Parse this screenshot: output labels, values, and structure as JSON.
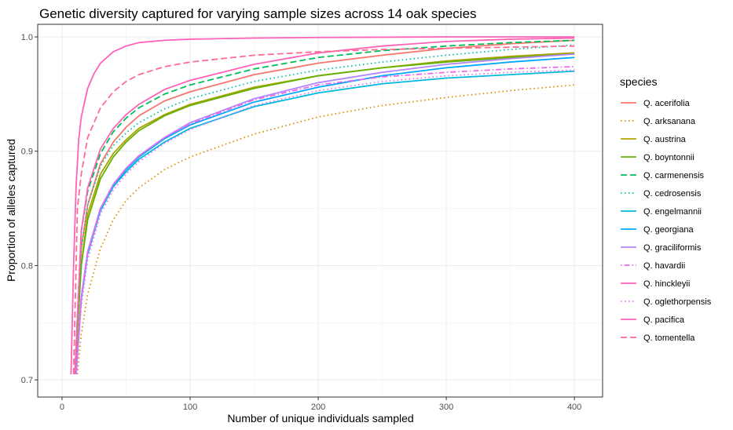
{
  "chart_data": {
    "type": "line",
    "title": "Genetic diversity captured for varying sample sizes across 14 oak species",
    "xlabel": "Number of unique individuals sampled",
    "ylabel": "Proportion of alleles captured",
    "xlim": [
      -19,
      422
    ],
    "ylim": [
      0.685,
      1.011
    ],
    "x_ticks": [
      0,
      100,
      200,
      300,
      400
    ],
    "y_ticks": [
      0.7,
      0.8,
      0.9,
      1.0
    ],
    "x_tick_labels": [
      "0",
      "100",
      "200",
      "300",
      "400"
    ],
    "y_tick_labels": [
      "0.7",
      "0.8",
      "0.9",
      "1.0"
    ],
    "grid": true,
    "legend_title": "species",
    "legend_position": "right",
    "series": [
      {
        "name": "Q. acerifolia",
        "color": "#F8766D",
        "dash": "solid",
        "x": [
          10,
          15,
          20,
          30,
          40,
          50,
          60,
          80,
          100,
          150,
          200,
          250,
          300,
          350,
          400
        ],
        "y": [
          0.705,
          0.815,
          0.853,
          0.889,
          0.908,
          0.921,
          0.931,
          0.944,
          0.952,
          0.967,
          0.977,
          0.984,
          0.99,
          0.994,
          0.997
        ]
      },
      {
        "name": "Q. arksanana",
        "color": "#DB8E00",
        "dash": "dot",
        "x": [
          12,
          15,
          20,
          30,
          40,
          50,
          60,
          80,
          100,
          150,
          200,
          250,
          300,
          350,
          400
        ],
        "y": [
          0.705,
          0.74,
          0.775,
          0.815,
          0.84,
          0.857,
          0.868,
          0.884,
          0.895,
          0.915,
          0.93,
          0.94,
          0.947,
          0.953,
          0.958
        ]
      },
      {
        "name": "Q. austrina",
        "color": "#AEA200",
        "dash": "solid",
        "x": [
          10,
          15,
          20,
          30,
          40,
          50,
          60,
          80,
          100,
          150,
          200,
          250,
          300,
          350,
          400
        ],
        "y": [
          0.705,
          0.8,
          0.845,
          0.88,
          0.898,
          0.91,
          0.92,
          0.932,
          0.941,
          0.956,
          0.966,
          0.973,
          0.979,
          0.983,
          0.986
        ]
      },
      {
        "name": "Q. boyntonnii",
        "color": "#64B200",
        "dash": "solid",
        "x": [
          10,
          15,
          20,
          30,
          40,
          50,
          60,
          80,
          100,
          150,
          200,
          250,
          300,
          350,
          400
        ],
        "y": [
          0.705,
          0.8,
          0.84,
          0.876,
          0.895,
          0.908,
          0.918,
          0.931,
          0.94,
          0.955,
          0.966,
          0.973,
          0.978,
          0.982,
          0.985
        ]
      },
      {
        "name": "Q. carmenensis",
        "color": "#00BD5C",
        "dash": "dashed",
        "x": [
          10,
          15,
          20,
          30,
          40,
          50,
          60,
          80,
          100,
          150,
          200,
          250,
          300,
          350,
          400
        ],
        "y": [
          0.705,
          0.83,
          0.865,
          0.898,
          0.917,
          0.929,
          0.938,
          0.95,
          0.958,
          0.972,
          0.982,
          0.988,
          0.992,
          0.995,
          0.997
        ]
      },
      {
        "name": "Q. cedrosensis",
        "color": "#00C1A7",
        "dash": "dot",
        "x": [
          10,
          15,
          20,
          30,
          40,
          50,
          60,
          80,
          100,
          150,
          200,
          250,
          300,
          350,
          400
        ],
        "y": [
          0.705,
          0.815,
          0.853,
          0.887,
          0.905,
          0.916,
          0.925,
          0.937,
          0.946,
          0.961,
          0.971,
          0.978,
          0.984,
          0.989,
          0.993
        ]
      },
      {
        "name": "Q. engelmannii",
        "color": "#00BADE",
        "dash": "solid",
        "x": [
          11,
          15,
          20,
          30,
          40,
          50,
          60,
          80,
          100,
          150,
          200,
          250,
          300,
          350,
          400
        ],
        "y": [
          0.705,
          0.77,
          0.81,
          0.848,
          0.869,
          0.882,
          0.893,
          0.908,
          0.92,
          0.939,
          0.951,
          0.959,
          0.964,
          0.967,
          0.97
        ]
      },
      {
        "name": "Q. georgiana",
        "color": "#00A6FF",
        "dash": "solid",
        "x": [
          11,
          15,
          20,
          30,
          40,
          50,
          60,
          80,
          100,
          150,
          200,
          250,
          300,
          350,
          400
        ],
        "y": [
          0.705,
          0.772,
          0.812,
          0.85,
          0.87,
          0.884,
          0.895,
          0.911,
          0.923,
          0.943,
          0.956,
          0.966,
          0.973,
          0.978,
          0.982
        ]
      },
      {
        "name": "Q. graciliformis",
        "color": "#B385FF",
        "dash": "solid",
        "x": [
          11,
          15,
          20,
          30,
          40,
          50,
          60,
          80,
          100,
          150,
          200,
          250,
          300,
          350,
          400
        ],
        "y": [
          0.705,
          0.772,
          0.812,
          0.85,
          0.871,
          0.885,
          0.896,
          0.912,
          0.925,
          0.946,
          0.96,
          0.969,
          0.976,
          0.981,
          0.985
        ]
      },
      {
        "name": "Q. havardii",
        "color": "#EF67EB",
        "dash": "dotdash",
        "x": [
          11,
          15,
          20,
          30,
          40,
          50,
          60,
          80,
          100,
          150,
          200,
          250,
          300,
          350,
          400
        ],
        "y": [
          0.705,
          0.772,
          0.812,
          0.85,
          0.871,
          0.885,
          0.896,
          0.912,
          0.924,
          0.945,
          0.958,
          0.965,
          0.969,
          0.972,
          0.974
        ]
      },
      {
        "name": "Q. hinckleyii",
        "color": "#FF63B6",
        "dash": "solid",
        "x": [
          10,
          15,
          20,
          30,
          40,
          50,
          60,
          80,
          100,
          150,
          200,
          250,
          300,
          350,
          400
        ],
        "y": [
          0.705,
          0.83,
          0.868,
          0.902,
          0.92,
          0.932,
          0.941,
          0.954,
          0.962,
          0.976,
          0.986,
          0.992,
          0.996,
          0.998,
          0.999
        ]
      },
      {
        "name": "Q. oglethorpensis",
        "color": "#E76BF3",
        "dash": "dot",
        "x": [
          11,
          15,
          20,
          30,
          40,
          50,
          60,
          80,
          100,
          150,
          200,
          250,
          300,
          350,
          400
        ],
        "y": [
          0.705,
          0.765,
          0.805,
          0.845,
          0.866,
          0.88,
          0.891,
          0.907,
          0.919,
          0.94,
          0.953,
          0.961,
          0.966,
          0.969,
          0.971
        ]
      },
      {
        "name": "Q. pacifica",
        "color": "#FF62BC",
        "dash": "solid",
        "x": [
          7,
          9,
          11,
          13,
          15,
          20,
          25,
          30,
          40,
          50,
          60,
          80,
          100,
          150,
          200,
          300,
          400
        ],
        "y": [
          0.705,
          0.8,
          0.87,
          0.91,
          0.93,
          0.955,
          0.968,
          0.977,
          0.987,
          0.992,
          0.995,
          0.997,
          0.998,
          0.999,
          0.9995,
          1.0,
          1.0
        ]
      },
      {
        "name": "Q. tomentella",
        "color": "#FF6C91",
        "dash": "dashed",
        "x": [
          9,
          12,
          15,
          20,
          30,
          40,
          50,
          60,
          80,
          100,
          150,
          200,
          250,
          300,
          350,
          400
        ],
        "y": [
          0.705,
          0.85,
          0.88,
          0.912,
          0.938,
          0.952,
          0.961,
          0.967,
          0.974,
          0.978,
          0.984,
          0.987,
          0.989,
          0.99,
          0.991,
          0.992
        ]
      }
    ]
  }
}
